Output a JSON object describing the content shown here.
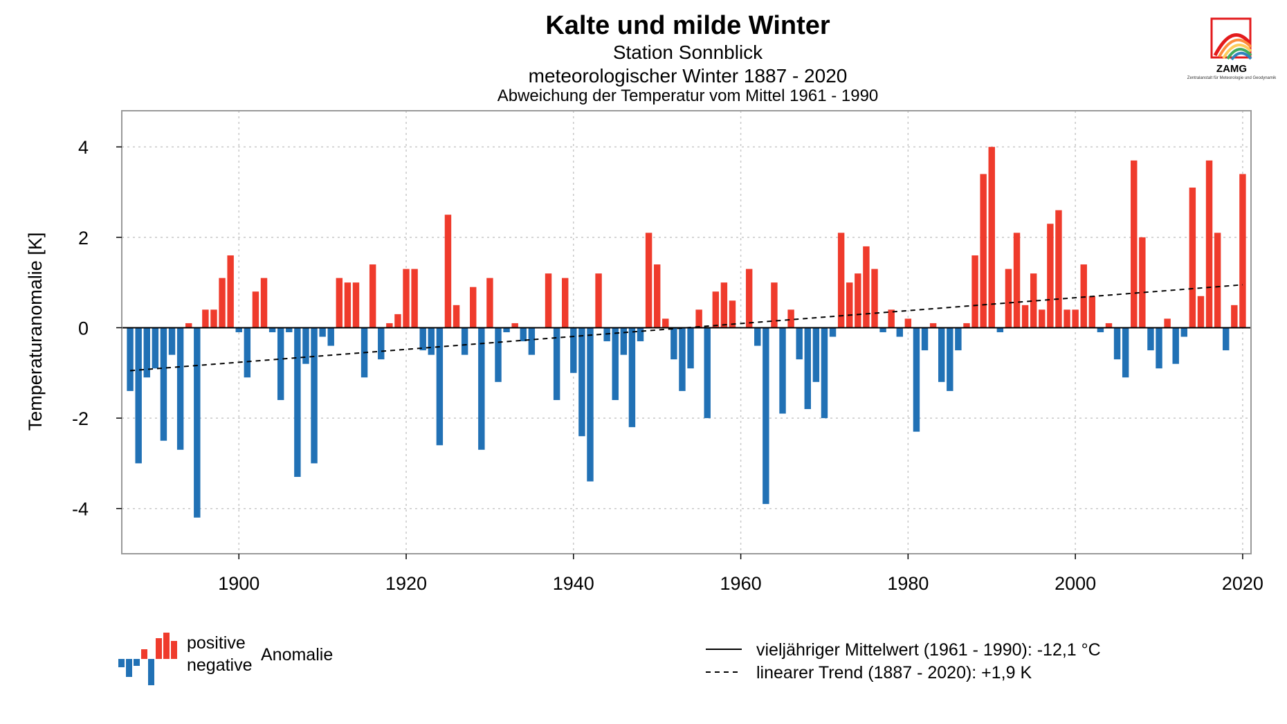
{
  "logo": {
    "name": "ZAMG",
    "subtitle": "Zentralanstalt für Meteorologie und Geodynamik"
  },
  "chart_data": {
    "type": "bar",
    "title": "Kalte und milde Winter",
    "subtitle_1": "Station Sonnblick",
    "subtitle_2": "meteorologischer Winter 1887 - 2020",
    "subtitle_3": "Abweichung der Temperatur vom Mittel 1961 - 1990",
    "ylabel": "Temperaturanomalie [K]",
    "xlim": [
      1886,
      2021
    ],
    "ylim": [
      -5,
      4.8
    ],
    "xticks": [
      1900,
      1920,
      1940,
      1960,
      1980,
      2000,
      2020
    ],
    "yticks": [
      -4,
      -2,
      0,
      2,
      4
    ],
    "grid": true,
    "colors": {
      "positive": "#ef3b2c",
      "negative": "#2171b5"
    },
    "start_year": 1887,
    "values": [
      -1.4,
      -3.0,
      -1.1,
      -0.9,
      -2.5,
      -0.6,
      -2.7,
      0.1,
      -4.2,
      0.4,
      0.4,
      1.1,
      1.6,
      -0.1,
      -1.1,
      0.8,
      1.1,
      -0.1,
      -1.6,
      -0.1,
      -3.3,
      -0.8,
      -3.0,
      -0.2,
      -0.4,
      1.1,
      1.0,
      1.0,
      -1.1,
      1.4,
      -0.7,
      0.1,
      0.3,
      1.3,
      1.3,
      -0.5,
      -0.6,
      -2.6,
      2.5,
      0.5,
      -0.6,
      0.9,
      -2.7,
      1.1,
      -1.2,
      -0.1,
      0.1,
      -0.3,
      -0.6,
      0.0,
      1.2,
      -1.6,
      1.1,
      -1.0,
      -2.4,
      -3.4,
      1.2,
      -0.3,
      -1.6,
      -0.6,
      -2.2,
      -0.3,
      2.1,
      1.4,
      0.2,
      -0.7,
      -1.4,
      -0.9,
      0.4,
      -2.0,
      0.8,
      1.0,
      0.6,
      0.0,
      1.3,
      -0.4,
      -3.9,
      1.0,
      -1.9,
      0.4,
      -0.7,
      -1.8,
      -1.2,
      -2.0,
      -0.2,
      2.1,
      1.0,
      1.2,
      1.8,
      1.3,
      -0.1,
      0.4,
      -0.2,
      0.2,
      -2.3,
      -0.5,
      0.1,
      -1.2,
      -1.4,
      -0.5,
      0.1,
      1.6,
      3.4,
      4.0,
      -0.1,
      1.3,
      2.1,
      0.5,
      1.2,
      0.4,
      2.3,
      2.6,
      0.4,
      0.4,
      1.4,
      0.7,
      -0.1,
      0.1,
      -0.7,
      -1.1,
      3.7,
      2.0,
      -0.5,
      -0.9,
      0.2,
      -0.8,
      -0.2,
      3.1,
      0.7,
      3.7,
      2.1,
      -0.5,
      0.5,
      3.4
    ],
    "trend": {
      "x": [
        1887,
        2020
      ],
      "y": [
        -0.95,
        0.95
      ]
    },
    "legend": {
      "positive": "positive",
      "negative": "negative",
      "anomaly": "Anomalie",
      "mean": "vieljähriger Mittelwert (1961 - 1990): -12,1 °C",
      "trend": "linearer Trend (1887 - 2020): +1,9 K"
    }
  }
}
